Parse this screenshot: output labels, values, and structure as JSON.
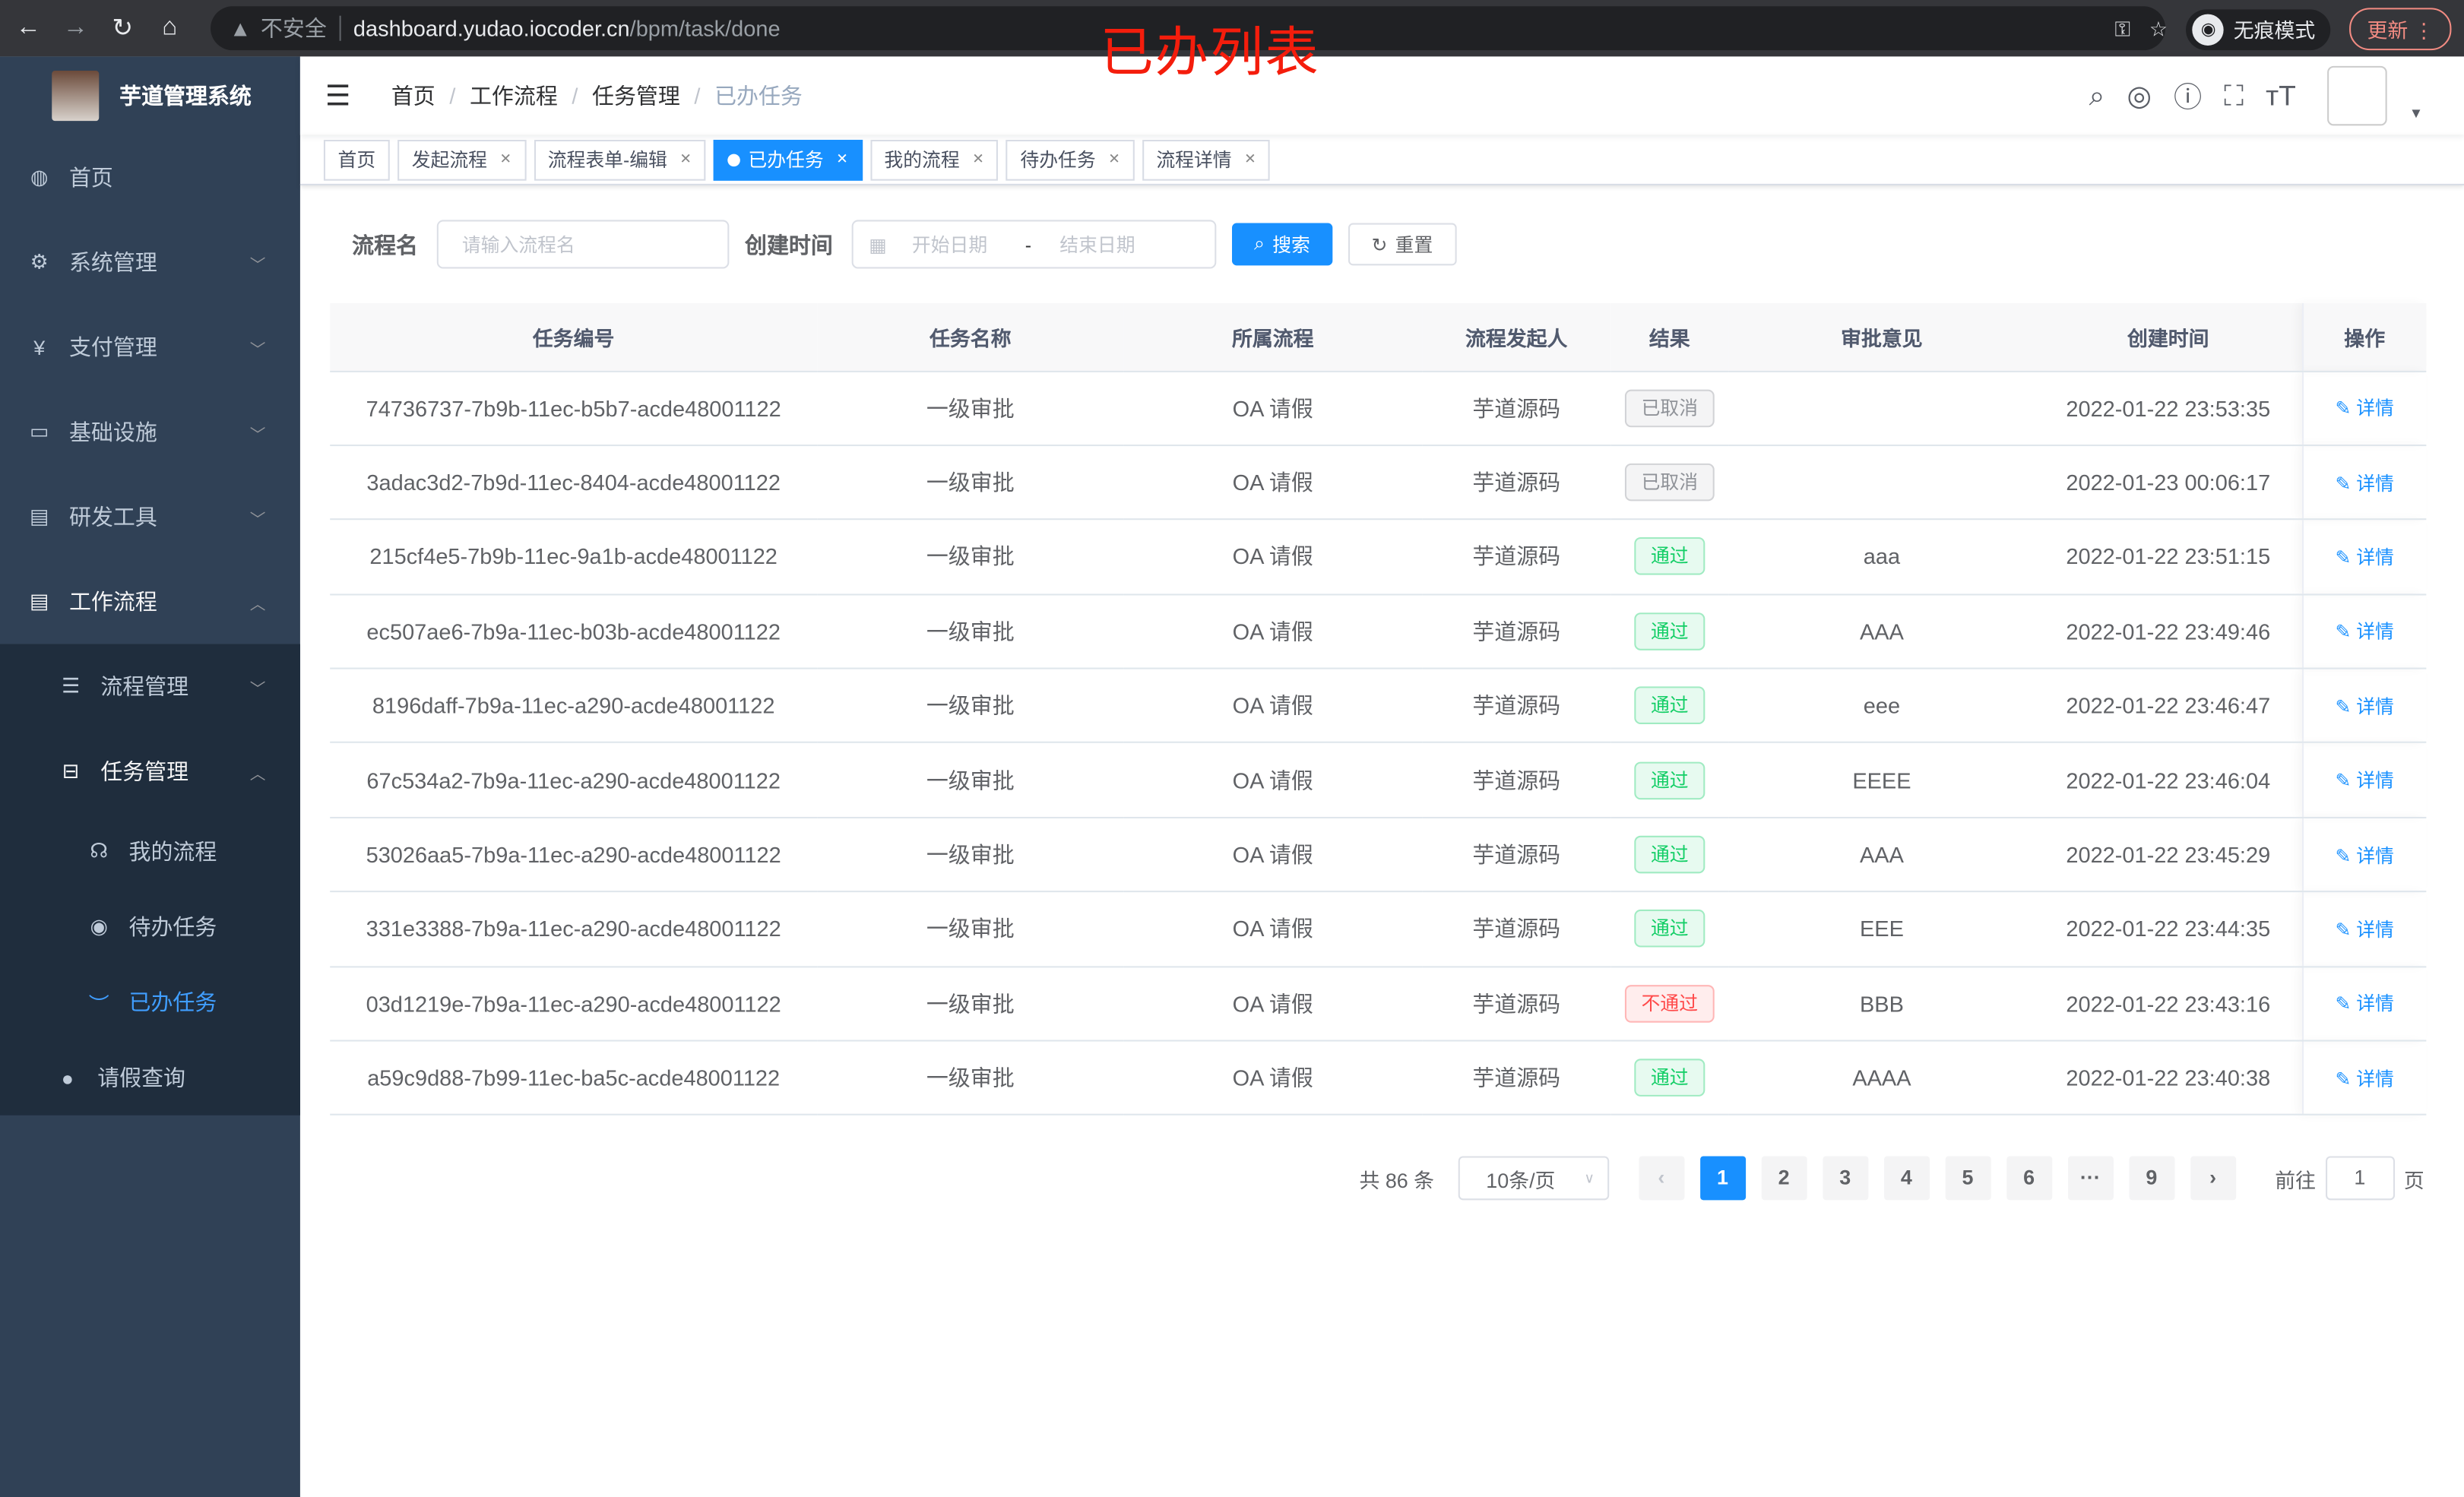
{
  "browser": {
    "security": "不安全",
    "url_host": "dashboard.yudao.iocoder.cn",
    "url_path": "/bpm/task/done",
    "incognito_label": "无痕模式",
    "update_label": "更新"
  },
  "annotation": "已办列表",
  "sidebar": {
    "title": "芋道管理系统",
    "items": [
      {
        "label": "首页",
        "icon": "dashboard-icon"
      },
      {
        "label": "系统管理",
        "icon": "gear-icon"
      },
      {
        "label": "支付管理",
        "icon": "yen-icon"
      },
      {
        "label": "基础设施",
        "icon": "monitor-icon"
      },
      {
        "label": "研发工具",
        "icon": "toolbox-icon"
      },
      {
        "label": "工作流程",
        "icon": "toolbox-icon"
      }
    ],
    "sub_items": [
      {
        "label": "流程管理"
      },
      {
        "label": "任务管理"
      }
    ],
    "task_items": [
      {
        "label": "我的流程"
      },
      {
        "label": "待办任务"
      },
      {
        "label": "已办任务"
      }
    ],
    "leave_item": "请假查询"
  },
  "breadcrumb": [
    "首页",
    "工作流程",
    "任务管理",
    "已办任务"
  ],
  "tags": [
    "首页",
    "发起流程",
    "流程表单-编辑",
    "已办任务",
    "我的流程",
    "待办任务",
    "流程详情"
  ],
  "search": {
    "name_label": "流程名",
    "name_placeholder": "请输入流程名",
    "time_label": "创建时间",
    "start_placeholder": "开始日期",
    "range_sep": "-",
    "end_placeholder": "结束日期",
    "search_btn": "搜索",
    "reset_btn": "重置"
  },
  "table": {
    "headers": [
      "任务编号",
      "任务名称",
      "所属流程",
      "流程发起人",
      "结果",
      "审批意见",
      "创建时间",
      "操作"
    ],
    "action_label": "详情",
    "status_colors": {
      "已取消": "#909399",
      "通过": "#13ce66",
      "不通过": "#ff4949"
    },
    "rows": [
      {
        "id": "74736737-7b9b-11ec-b5b7-acde48001122",
        "name": "一级审批",
        "process": "OA 请假",
        "starter": "芋道源码",
        "result": "已取消",
        "comment": "",
        "time": "2022-01-22 23:53:35"
      },
      {
        "id": "3adac3d2-7b9d-11ec-8404-acde48001122",
        "name": "一级审批",
        "process": "OA 请假",
        "starter": "芋道源码",
        "result": "已取消",
        "comment": "",
        "time": "2022-01-23 00:06:17"
      },
      {
        "id": "215cf4e5-7b9b-11ec-9a1b-acde48001122",
        "name": "一级审批",
        "process": "OA 请假",
        "starter": "芋道源码",
        "result": "通过",
        "comment": "aaa",
        "time": "2022-01-22 23:51:15"
      },
      {
        "id": "ec507ae6-7b9a-11ec-b03b-acde48001122",
        "name": "一级审批",
        "process": "OA 请假",
        "starter": "芋道源码",
        "result": "通过",
        "comment": "AAA",
        "time": "2022-01-22 23:49:46"
      },
      {
        "id": "8196daff-7b9a-11ec-a290-acde48001122",
        "name": "一级审批",
        "process": "OA 请假",
        "starter": "芋道源码",
        "result": "通过",
        "comment": "eee",
        "time": "2022-01-22 23:46:47"
      },
      {
        "id": "67c534a2-7b9a-11ec-a290-acde48001122",
        "name": "一级审批",
        "process": "OA 请假",
        "starter": "芋道源码",
        "result": "通过",
        "comment": "EEEE",
        "time": "2022-01-22 23:46:04"
      },
      {
        "id": "53026aa5-7b9a-11ec-a290-acde48001122",
        "name": "一级审批",
        "process": "OA 请假",
        "starter": "芋道源码",
        "result": "通过",
        "comment": "AAA",
        "time": "2022-01-22 23:45:29"
      },
      {
        "id": "331e3388-7b9a-11ec-a290-acde48001122",
        "name": "一级审批",
        "process": "OA 请假",
        "starter": "芋道源码",
        "result": "通过",
        "comment": "EEE",
        "time": "2022-01-22 23:44:35"
      },
      {
        "id": "03d1219e-7b9a-11ec-a290-acde48001122",
        "name": "一级审批",
        "process": "OA 请假",
        "starter": "芋道源码",
        "result": "不通过",
        "comment": "BBB",
        "time": "2022-01-22 23:43:16"
      },
      {
        "id": "a59c9d88-7b99-11ec-ba5c-acde48001122",
        "name": "一级审批",
        "process": "OA 请假",
        "starter": "芋道源码",
        "result": "通过",
        "comment": "AAAA",
        "time": "2022-01-22 23:40:38"
      }
    ]
  },
  "pagination": {
    "total": "共 86 条",
    "page_size": "10条/页",
    "pages": [
      "1",
      "2",
      "3",
      "4",
      "5",
      "6",
      "···",
      "9"
    ],
    "current": "1",
    "goto_label": "前往",
    "goto_value": "1",
    "page_suffix": "页"
  }
}
